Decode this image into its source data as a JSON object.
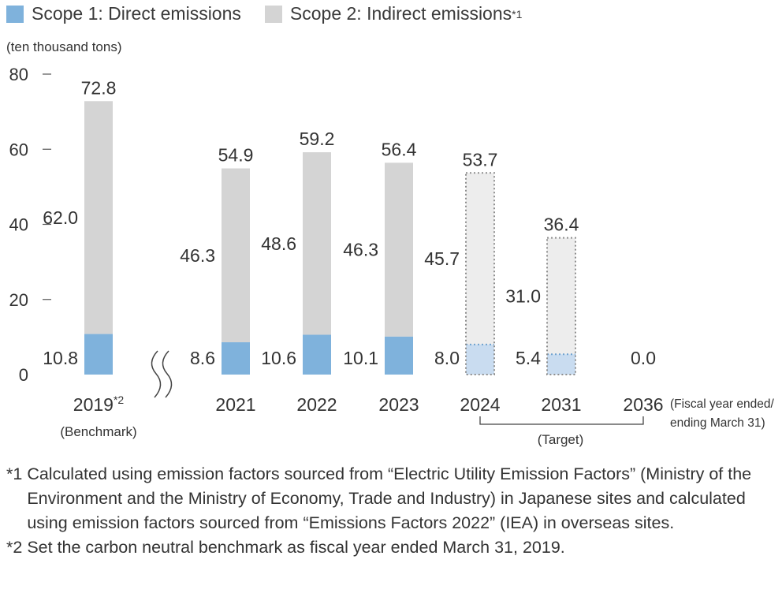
{
  "legend": {
    "scope1": "Scope 1: Direct  emissions",
    "scope2": "Scope 2: Indirect  emissions",
    "scope2_sup": "*1"
  },
  "unit_label": "(ten thousand tons)",
  "colors": {
    "scope1": "#7FB2DC",
    "scope2": "#D4D4D4",
    "scope1_target": "#C9DCF0",
    "scope2_target": "#EDEDED",
    "target_border": "#8E8E8E",
    "axis": "#555555"
  },
  "chart_data": {
    "type": "bar",
    "stacked": true,
    "ylim": [
      0,
      80
    ],
    "yticks": [
      "0",
      "20",
      "40",
      "60",
      "80"
    ],
    "categories": [
      {
        "label": "2019",
        "sup": "*2",
        "sublabel": "(Benchmark)",
        "target": false
      },
      {
        "label": "2021",
        "target": false
      },
      {
        "label": "2022",
        "target": false
      },
      {
        "label": "2023",
        "target": false
      },
      {
        "label": "2024",
        "target": true
      },
      {
        "label": "2031",
        "target": true
      },
      {
        "label": "2036",
        "target": true
      }
    ],
    "series": [
      {
        "name": "Scope 1: Direct  emissions",
        "values": [
          10.8,
          8.6,
          10.6,
          10.1,
          8.0,
          5.4,
          0.0
        ],
        "labels": [
          "10.8",
          "8.6",
          "10.6",
          "10.1",
          "8.0",
          "5.4",
          "0.0"
        ]
      },
      {
        "name": "Scope 2: Indirect  emissions",
        "values": [
          62.0,
          46.3,
          48.6,
          46.3,
          45.7,
          31.0,
          0.0
        ],
        "labels": [
          "62.0",
          "46.3",
          "48.6",
          "46.3",
          "45.7",
          "31.0",
          ""
        ]
      }
    ],
    "totals": [
      72.8,
      54.9,
      59.2,
      56.4,
      53.7,
      36.4,
      null
    ],
    "total_labels": [
      "72.8",
      "54.9",
      "59.2",
      "56.4",
      "53.7",
      "36.4",
      ""
    ],
    "x_note_line1": "(Fiscal year ended/",
    "x_note_line2": "ending March 31)",
    "target_label": "(Target)"
  },
  "footnotes": [
    {
      "mark": "*1",
      "text": "Calculated using emission factors sourced from “Electric Utility Emission Factors” (Ministry of the Environment and the Ministry of Economy, Trade and Industry) in Japanese sites and calculated using emission factors sourced from “Emissions Factors 2022” (IEA) in overseas sites."
    },
    {
      "mark": "*2",
      "text": "Set the carbon neutral benchmark as fiscal year ended March 31, 2019."
    }
  ]
}
